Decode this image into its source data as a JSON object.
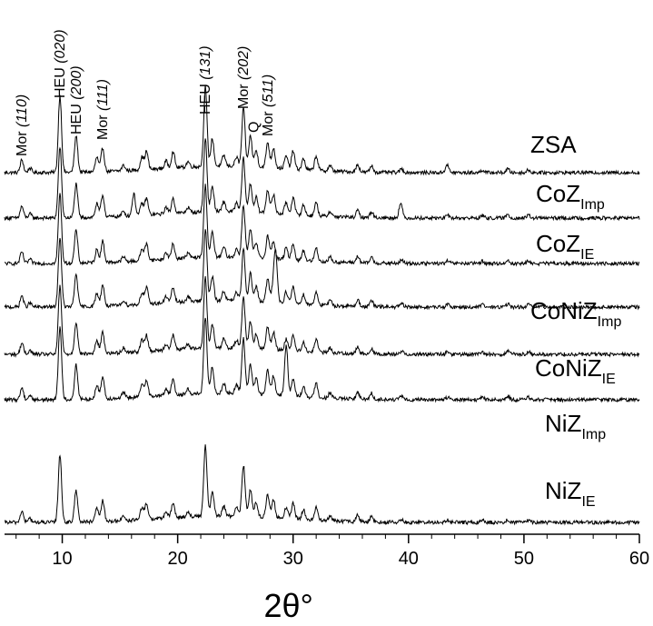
{
  "chart_data": {
    "type": "line",
    "title": "",
    "xlabel": "2θ°",
    "ylabel": "",
    "xlim": [
      5,
      60
    ],
    "x_ticks": [
      10,
      20,
      30,
      40,
      50,
      60
    ],
    "x_tick_labels": [
      "10",
      "20",
      "30",
      "40",
      "50",
      "60"
    ],
    "colors": {
      "line": "#000000",
      "axis": "#000000"
    },
    "peaks": [
      {
        "x": 6.5,
        "h": 14
      },
      {
        "x": 7.2,
        "h": 5
      },
      {
        "x": 9.8,
        "h": 85
      },
      {
        "x": 11.2,
        "h": 40
      },
      {
        "x": 13.0,
        "h": 16
      },
      {
        "x": 13.5,
        "h": 26
      },
      {
        "x": 15.3,
        "h": 6
      },
      {
        "x": 16.9,
        "h": 14
      },
      {
        "x": 17.3,
        "h": 20
      },
      {
        "x": 19.0,
        "h": 8
      },
      {
        "x": 19.6,
        "h": 18
      },
      {
        "x": 20.9,
        "h": 6
      },
      {
        "x": 22.4,
        "h": 88
      },
      {
        "x": 23.0,
        "h": 30
      },
      {
        "x": 24.0,
        "h": 12
      },
      {
        "x": 25.1,
        "h": 10
      },
      {
        "x": 25.7,
        "h": 64
      },
      {
        "x": 26.3,
        "h": 34
      },
      {
        "x": 26.8,
        "h": 18
      },
      {
        "x": 27.8,
        "h": 28
      },
      {
        "x": 28.3,
        "h": 22
      },
      {
        "x": 29.4,
        "h": 14
      },
      {
        "x": 30.0,
        "h": 20
      },
      {
        "x": 30.9,
        "h": 12
      },
      {
        "x": 32.0,
        "h": 16
      },
      {
        "x": 33.2,
        "h": 6
      },
      {
        "x": 35.6,
        "h": 8
      },
      {
        "x": 36.8,
        "h": 7
      },
      {
        "x": 39.4,
        "h": 4
      },
      {
        "x": 43.4,
        "h": 3
      },
      {
        "x": 46.4,
        "h": 3
      },
      {
        "x": 48.6,
        "h": 4
      },
      {
        "x": 50.4,
        "h": 3
      }
    ],
    "series": [
      {
        "name": "ZSA",
        "label_main": "ZSA",
        "label_sub": "",
        "baseline": 0.9,
        "scale": 1.0,
        "extra_peaks": [
          {
            "x": 43.3,
            "h": 6
          }
        ]
      },
      {
        "name": "CoZ_Imp",
        "label_main": "CoZ",
        "label_sub": "Imp",
        "baseline": 0.9,
        "scale": 0.92,
        "extra_peaks": [
          {
            "x": 16.2,
            "h": 26
          },
          {
            "x": 39.3,
            "h": 14
          }
        ]
      },
      {
        "name": "CoZ_IE",
        "label_main": "CoZ",
        "label_sub": "IE",
        "baseline": 0.9,
        "scale": 0.9,
        "extra_peaks": []
      },
      {
        "name": "CoNiZ_Imp",
        "label_main": "CoNiZ",
        "label_sub": "Imp",
        "baseline": 0.9,
        "scale": 0.9,
        "extra_peaks": [
          {
            "x": 28.5,
            "h": 55
          }
        ]
      },
      {
        "name": "CoNiZ_IE",
        "label_main": "CoNiZ",
        "label_sub": "IE",
        "baseline": 0.9,
        "scale": 0.88,
        "extra_peaks": []
      },
      {
        "name": "NiZ_Imp",
        "label_main": "NiZ",
        "label_sub": "Imp",
        "baseline": 0.9,
        "scale": 0.95,
        "extra_peaks": [
          {
            "x": 29.4,
            "h": 45
          }
        ]
      },
      {
        "name": "NiZ_IE",
        "label_main": "NiZ",
        "label_sub": "IE",
        "baseline": 0.9,
        "scale": 0.88,
        "extra_peaks": []
      }
    ],
    "annotations": [
      {
        "text": "Mor",
        "index": "(110)",
        "x": 6.5
      },
      {
        "text": "HEU",
        "index": "(020)",
        "x": 9.8
      },
      {
        "text": "HEU",
        "index": "(200)",
        "x": 11.2
      },
      {
        "text": "Mor",
        "index": "(111)",
        "x": 13.5
      },
      {
        "text": "HEU",
        "index": "(131)",
        "x": 22.4
      },
      {
        "text": "Mor",
        "index": "(202)",
        "x": 25.7
      },
      {
        "text": "Q",
        "index": "",
        "x": 26.6
      },
      {
        "text": "Mor",
        "index": "(511)",
        "x": 27.8
      }
    ]
  }
}
